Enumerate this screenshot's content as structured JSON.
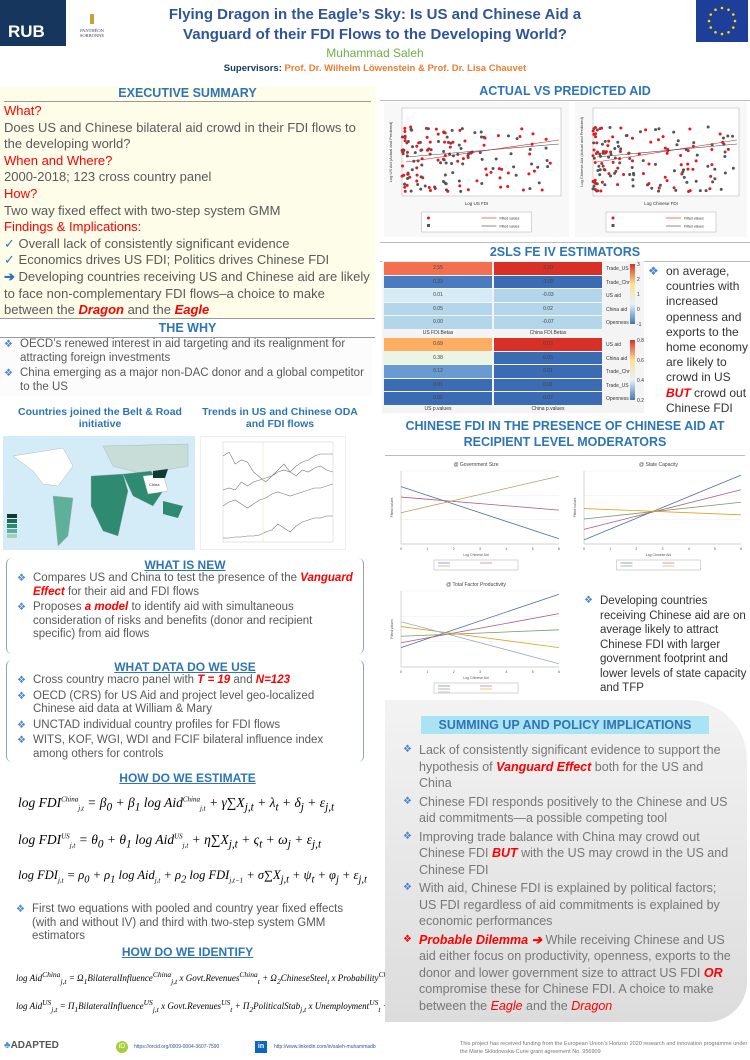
{
  "header": {
    "logo_rub": "RUB",
    "logo_sorbonne": "PANTHÉON SORBONNE",
    "title_line1": "Flying Dragon in the Eagle’s Sky: Is US and Chinese Aid a",
    "title_line2": "Vanguard of their FDI Flows to the Developing World?",
    "author": "Muhammad Saleh",
    "supervisors_label": "Supervisors:",
    "supervisors": "Prof. Dr. Wilhelm Löwenstein  & Prof. Dr. Lisa Chauvet"
  },
  "exec": {
    "title": "EXECUTIVE SUMMARY",
    "what_q": "What?",
    "what_a": "Does US and Chinese bilateral aid crowd in their FDI flows to the developing world?",
    "when_q": "When and Where?",
    "when_a": "2000-2018; 123 cross country panel",
    "how_q": "How?",
    "how_a": "Two way fixed effect with two-step system GMM",
    "findings_q": "Findings & Implications:",
    "f1": "Overall lack of consistently significant evidence",
    "f2": "Economics drives US FDI; Politics drives Chinese FDI",
    "f3a": "Developing countries receiving US and Chinese aid are likely to face non-complementary FDI flows–a choice to make between the ",
    "f3b": "Dragon",
    "f3c": " and the ",
    "f3d": "Eagle"
  },
  "why": {
    "title": "THE WHY",
    "b1": "OECD’s renewed interest in aid targeting and its realignment for attracting foreign investments",
    "b2": "China emerging as a major non-DAC donor and a global competitor to the US",
    "map_title": "Countries joined the Belt & Road initiative",
    "map_china": "China",
    "trend_title": "Trends in US and Chinese ODA and FDI flows"
  },
  "new": {
    "title": "WHAT IS NEW",
    "b1a": "Compares US and China to test the presence of the ",
    "b1b": "Vanguard Effect",
    "b1c": " for their aid and FDI flows",
    "b2a": "Proposes ",
    "b2b": "a model",
    "b2c": " to identify aid with simultaneous consideration of risks and benefits (donor and recipient specific) from aid flows"
  },
  "datause": {
    "title": "WHAT DATA DO WE USE",
    "b1a": "Cross country macro panel with ",
    "b1b": "T = 19",
    "b1c": " and ",
    "b1d": "N=123",
    "b2": "OECD (CRS) for US Aid and project level geo-localized Chinese aid data at William & Mary",
    "b3": "UNCTAD individual country profiles for FDI flows",
    "b4": "WITS, KOF, WGI, WDI and FCIF bilateral influence index among others for controls"
  },
  "estimate": {
    "title": "HOW DO WE ESTIMATE",
    "note": "First two equations with pooled and country year fixed effects (with and without IV) and third with two-step system GMM estimators"
  },
  "identify": {
    "title": "HOW DO WE IDENTIFY"
  },
  "footer": {
    "adapted": "ADAPTED",
    "orcid": "https://orcid.org/0009-0004-3607-7590",
    "linkedin": "http://www.linkedin.com/in/saleh-muhammadb",
    "funding": "This project has received funding from the European Union’s Horizon 2020 research and innovation programme under the Marie Sklodowska-Curie grant agreement No. 956909"
  },
  "actual": {
    "title": "ACTUAL VS PREDICTED AID",
    "x1": "Log US FDI",
    "y1": "Log US Aid (Actual and Predicted)",
    "x2": "Log Chinese FDI",
    "y2": "Log Chinese Aid (Actual and Predicted)",
    "legend_fitted": "Fitted values"
  },
  "sls": {
    "title": "2SLS FE IV ESTIMATORS",
    "text_a": "on average, countries with increased openness and exports to the home economy are likely to crowd in US ",
    "text_b": "BUT",
    "text_c": " crowd out Chinese FDI",
    "betas": {
      "cols": [
        "US FDI.Betas",
        "China FDI.Betas"
      ],
      "rows": [
        "Trade_US",
        "Trade_Chn",
        "US aid",
        "China aid",
        "Openness"
      ],
      "values": [
        [
          "2.55",
          "3.10"
        ],
        [
          "0.33",
          "-1.03"
        ],
        [
          "0.01",
          "-0.03"
        ],
        [
          "0.05",
          "0.02"
        ],
        [
          "0.00",
          "-0.07"
        ]
      ],
      "colors": [
        [
          "#f2704f",
          "#d73027"
        ],
        [
          "#4a7bbf",
          "#3b6bb3"
        ],
        [
          "#d6ebf5",
          "#b3d6ea"
        ],
        [
          "#b3d6ea",
          "#b3d6ea"
        ],
        [
          "#b3d6ea",
          "#b3d6ea"
        ]
      ],
      "scale": [
        "3",
        "2",
        "1",
        "0",
        "-1"
      ]
    },
    "pvals": {
      "cols": [
        "US p.values",
        "China p.values"
      ],
      "rows": [
        "US aid",
        "China aid",
        "Trade_Chn",
        "Trade_US",
        "Openness"
      ],
      "values": [
        [
          "0.69",
          "0.03"
        ],
        [
          "0.38",
          "0.05"
        ],
        [
          "0.12",
          "0.01"
        ],
        [
          "0.01",
          "0.01"
        ],
        [
          "0.00",
          "0.07"
        ]
      ],
      "colors": [
        [
          "#fdae61",
          "#d73027"
        ],
        [
          "#eaf5e4",
          "#3b6bb3"
        ],
        [
          "#6a9bd0",
          "#3b6bb3"
        ],
        [
          "#3b6bb3",
          "#3b6bb3"
        ],
        [
          "#3b6bb3",
          "#3b6bb3"
        ]
      ],
      "scale": [
        "0.8",
        "0.6",
        "0.4",
        "0.2"
      ]
    }
  },
  "moder": {
    "title": "CHINESE FDI IN THE PRESENCE OF CHINESE AID AT RECIPIENT LEVEL MODERATORS",
    "text": "Developing countries receiving Chinese aid are on average likely to attract Chinese FDI with larger government footprint and lower levels of state capacity and TFP"
  },
  "chart_data": [
    {
      "type": "line",
      "title": "@ Government Size",
      "xlabel": "Log Chinese Aid",
      "ylabel": "Fitted values",
      "xlim": [
        0,
        6
      ],
      "series": [
        {
          "color": "#4a6fa5",
          "values": [
            [
              0,
              10
            ],
            [
              6,
              -10
            ]
          ]
        },
        {
          "color": "#b05a7a",
          "values": [
            [
              0,
              6
            ],
            [
              6,
              1
            ]
          ]
        },
        {
          "color": "#b0a060",
          "values": [
            [
              0,
              0
            ],
            [
              6,
              14
            ]
          ]
        }
      ]
    },
    {
      "type": "line",
      "title": "@ State Capacity",
      "xlabel": "Log Chinese Aid",
      "ylabel": "Fitted values",
      "xlim": [
        0,
        6
      ],
      "series": [
        {
          "color": "#4a6fa5",
          "values": [
            [
              0,
              -10
            ],
            [
              6,
              21
            ]
          ]
        },
        {
          "color": "#b05a7a",
          "values": [
            [
              0,
              -5
            ],
            [
              6,
              14
            ]
          ]
        },
        {
          "color": "#7a9a60",
          "values": [
            [
              0,
              0
            ],
            [
              6,
              8
            ]
          ]
        },
        {
          "color": "#e0a020",
          "values": [
            [
              0,
              5
            ],
            [
              6,
              2
            ]
          ]
        }
      ]
    },
    {
      "type": "line",
      "title": "@ Total Factor Productivity",
      "xlabel": "Log Chinese Aid",
      "ylabel": "Fitted values",
      "xlim": [
        0,
        6
      ],
      "series": [
        {
          "color": "#4a6fa5",
          "values": [
            [
              0,
              -6
            ],
            [
              6,
              27
            ]
          ]
        },
        {
          "color": "#b05a7a",
          "values": [
            [
              0,
              -3
            ],
            [
              6,
              15
            ]
          ]
        },
        {
          "color": "#7a9a60",
          "values": [
            [
              0,
              1
            ],
            [
              6,
              5
            ]
          ]
        },
        {
          "color": "#e0a020",
          "values": [
            [
              0,
              7
            ],
            [
              6,
              -6
            ]
          ]
        },
        {
          "color": "#9aa8c8",
          "values": [
            [
              0,
              10
            ],
            [
              6,
              -16
            ]
          ]
        }
      ]
    }
  ],
  "summing": {
    "title": "SUMMING UP AND POLICY IMPLICATIONS",
    "b1a": "Lack of consistently significant evidence to support the hypothesis of ",
    "b1b": "Vanguard Effect",
    "b1c": " both for the US and China",
    "b2": "Chinese FDI responds positively to the Chinese and US aid commitments—a possible competing tool",
    "b3a": "Improving trade balance with China may crowd out Chinese FDI ",
    "b3b": "BUT",
    "b3c": " with the US may crowd in the US and Chinese FDI",
    "b4": "With aid, Chinese FDI is explained by political factors; US FDI regardless of aid commitments is explained by economic performances",
    "b5a": "Probable Dilemma ➔",
    "b5b": " While receiving Chinese and US aid either focus on productivity, openness, exports to the donor and lower government size to attract US FDI ",
    "b5c": "OR",
    "b5d": " compromise these for Chinese FDI. A choice to make between the ",
    "b5e": "Eagle",
    "b5f": " and the ",
    "b5g": "Dragon"
  }
}
